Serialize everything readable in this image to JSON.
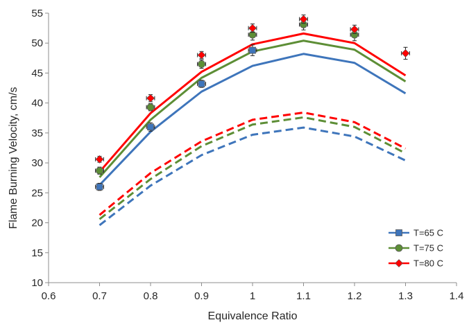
{
  "chart_data": {
    "type": "line",
    "title": "",
    "xlabel": "Equivalence Ratio",
    "ylabel": "Flame Burning Velocity, cm/s",
    "xlim": [
      0.6,
      1.4
    ],
    "ylim": [
      10,
      55
    ],
    "x_ticks": [
      "0.6",
      "0.7",
      "0.8",
      "0.9",
      "1",
      "1.1",
      "1.2",
      "1.3",
      "1.4"
    ],
    "y_ticks": [
      "10",
      "15",
      "20",
      "25",
      "30",
      "35",
      "40",
      "45",
      "50",
      "55"
    ],
    "grid": false,
    "legend_position": "bottom-right",
    "series": [
      {
        "name": "T=65 C",
        "color": "#3e75bb",
        "marker": "square",
        "measured": {
          "x": [
            0.7,
            0.8,
            0.9,
            1.0
          ],
          "y": [
            26.0,
            36.0,
            43.2,
            48.8
          ],
          "yerr": [
            0.6,
            0.7,
            0.6,
            0.9
          ],
          "xerr": [
            0.008,
            0.008,
            0.008,
            0.008
          ]
        },
        "solid_line": {
          "x": [
            0.7,
            0.8,
            0.9,
            1.0,
            1.1,
            1.2,
            1.3
          ],
          "y": [
            26.3,
            35.2,
            41.9,
            46.2,
            48.2,
            46.7,
            41.6
          ]
        },
        "dashed_line": {
          "x": [
            0.7,
            0.8,
            0.9,
            1.0,
            1.1,
            1.2,
            1.3
          ],
          "y": [
            19.6,
            26.2,
            31.3,
            34.7,
            35.9,
            34.4,
            30.4
          ]
        }
      },
      {
        "name": "T=75 C",
        "color": "#5d8e36",
        "marker": "circle",
        "measured": {
          "x": [
            0.7,
            0.8,
            0.9,
            1.0,
            1.1,
            1.2
          ],
          "y": [
            28.7,
            39.3,
            46.5,
            51.4,
            53.1,
            51.4
          ],
          "yerr": [
            0.6,
            0.6,
            0.7,
            0.9,
            0.9,
            1.0
          ],
          "xerr": [
            0.008,
            0.008,
            0.008,
            0.008,
            0.008,
            0.008
          ]
        },
        "solid_line": {
          "x": [
            0.7,
            0.8,
            0.9,
            1.0,
            1.1,
            1.2,
            1.3
          ],
          "y": [
            27.6,
            37.2,
            44.2,
            48.6,
            50.4,
            48.9,
            43.6
          ]
        },
        "dashed_line": {
          "x": [
            0.7,
            0.8,
            0.9,
            1.0,
            1.1,
            1.2,
            1.3
          ],
          "y": [
            20.6,
            27.3,
            32.8,
            36.4,
            37.6,
            36.0,
            31.6
          ]
        }
      },
      {
        "name": "T=80 C",
        "color": "#ff0000",
        "marker": "diamond",
        "measured": {
          "x": [
            0.7,
            0.8,
            0.9,
            1.0,
            1.1,
            1.2,
            1.3
          ],
          "y": [
            30.6,
            40.8,
            48.0,
            52.5,
            54.0,
            52.3,
            48.3
          ],
          "yerr": [
            0.5,
            0.6,
            0.6,
            0.7,
            0.7,
            0.7,
            1.0
          ],
          "xerr": [
            0.008,
            0.008,
            0.008,
            0.008,
            0.008,
            0.008,
            0.008
          ]
        },
        "solid_line": {
          "x": [
            0.7,
            0.8,
            0.9,
            1.0,
            1.1,
            1.2,
            1.3
          ],
          "y": [
            28.5,
            38.3,
            45.2,
            49.8,
            51.6,
            50.0,
            44.6
          ]
        },
        "dashed_line": {
          "x": [
            0.7,
            0.8,
            0.9,
            1.0,
            1.1,
            1.2,
            1.3
          ],
          "y": [
            21.3,
            28.3,
            33.6,
            37.2,
            38.4,
            36.8,
            32.4
          ]
        }
      }
    ]
  }
}
